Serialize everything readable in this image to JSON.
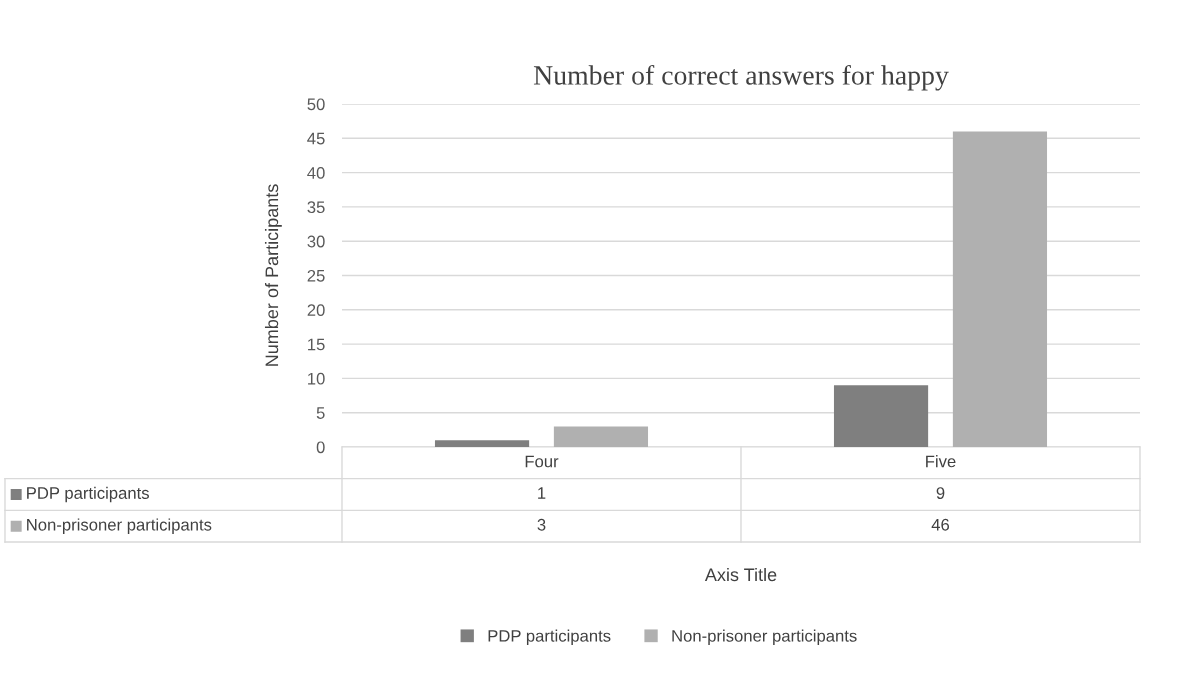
{
  "chart_data": {
    "type": "bar",
    "title": "Number of correct answers for happy",
    "annotations": [
      "Axis Title"
    ],
    "ylabel": "Number of Participants",
    "categories": [
      "Four",
      "Five"
    ],
    "series": [
      {
        "name": "PDP participants",
        "color": "#7f7f7f",
        "values": [
          1,
          9
        ]
      },
      {
        "name": "Non-prisoner participants",
        "color": "#b0b0b0",
        "values": [
          3,
          46
        ]
      }
    ],
    "ylim": [
      0,
      50
    ],
    "yticks": [
      0,
      5,
      10,
      15,
      20,
      25,
      30,
      35,
      40,
      45,
      50
    ],
    "grid": "y",
    "legend": "bottom",
    "data_labels": true
  }
}
